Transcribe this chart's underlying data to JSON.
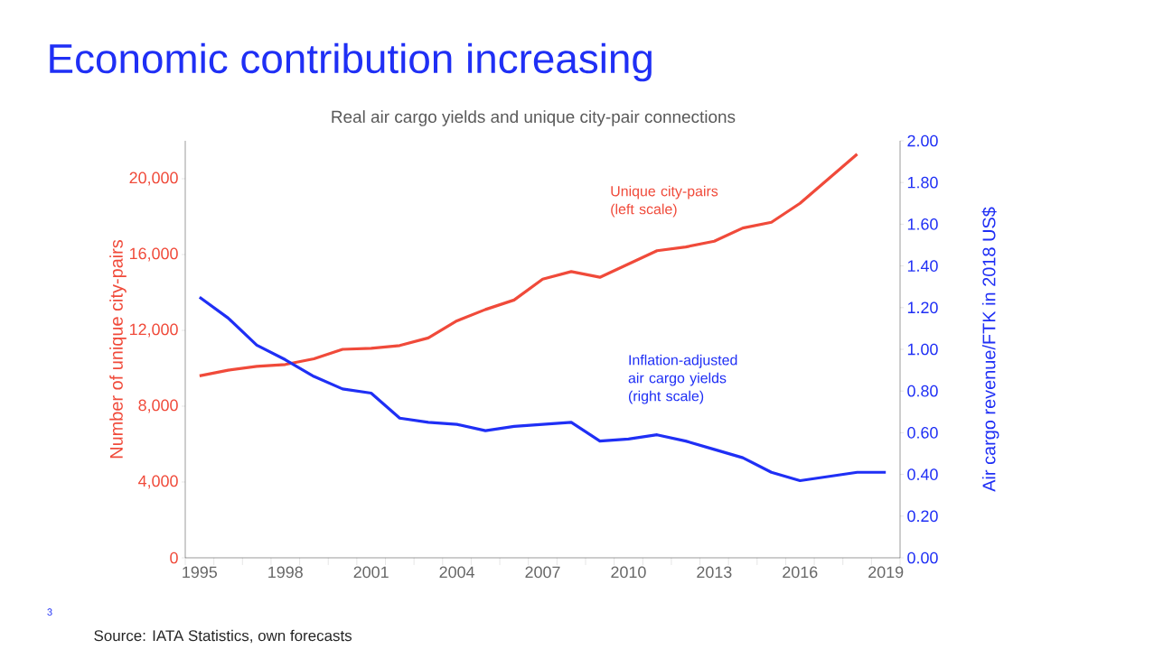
{
  "chart_data": {
    "type": "line",
    "title": "Economic contribution increasing",
    "subtitle": "Real air cargo yields and unique city-pair connections",
    "ylabel": "Number of unique city-pairs",
    "y2label": "Air cargo revenue/FTK in 2018 US$",
    "categories": [
      "1995",
      null,
      null,
      "1998",
      null,
      null,
      "2001",
      null,
      null,
      "2004",
      null,
      null,
      "2007",
      null,
      null,
      "2010",
      null,
      null,
      "2013",
      null,
      null,
      "2016",
      null,
      null,
      "2019"
    ],
    "series": [
      {
        "name": "Unique city-pairs (left scale)",
        "color": "#f04a3a",
        "values": [
          9600,
          9900,
          10100,
          10200,
          10500,
          11000,
          11050,
          11200,
          11600,
          12500,
          13100,
          13600,
          14700,
          15100,
          14800,
          15500,
          16200,
          16400,
          16700,
          17400,
          17700,
          18700,
          20000,
          21300,
          null
        ]
      },
      {
        "name": "Inflation-adjusted air cargo yields (right scale)",
        "color": "#1f2ff5",
        "axis": "y2",
        "values": [
          1.25,
          1.15,
          1.02,
          0.95,
          0.87,
          0.81,
          0.79,
          0.67,
          0.65,
          0.64,
          0.61,
          0.63,
          0.64,
          0.65,
          0.56,
          0.57,
          0.59,
          0.56,
          0.52,
          0.48,
          0.41,
          0.37,
          0.39,
          0.41,
          0.41
        ]
      }
    ],
    "ylim": [
      0,
      22000
    ],
    "yticks": [
      0,
      {
        "value": 4000,
        "label": "4,000"
      },
      {
        "value": 8000,
        "label": "8,000"
      },
      {
        "value": 12000,
        "label": "12,000"
      },
      {
        "value": 16000,
        "label": "16,000"
      },
      {
        "value": 20000,
        "label": "20,000"
      }
    ],
    "y2lim": [
      0,
      2
    ],
    "y2ticks": [
      {
        "value": 0,
        "label": "0.00"
      },
      {
        "value": 0.2,
        "label": "0.20"
      },
      {
        "value": 0.4,
        "label": "0.40"
      },
      {
        "value": 0.6,
        "label": "0.60"
      },
      {
        "value": 0.8,
        "label": "0.80"
      },
      {
        "value": 1.0,
        "label": "1.00"
      },
      {
        "value": 1.2,
        "label": "1.20"
      },
      {
        "value": 1.4,
        "label": "1.40"
      },
      {
        "value": 1.6,
        "label": "1.60"
      },
      {
        "value": 1.8,
        "label": "1.80"
      },
      {
        "value": 2.0,
        "label": "2.00"
      }
    ],
    "grid": false,
    "legend": false,
    "marker": "none",
    "line_style": "solid",
    "annotations": [
      "3",
      "Source: IATA Statistics, own forecasts"
    ]
  }
}
